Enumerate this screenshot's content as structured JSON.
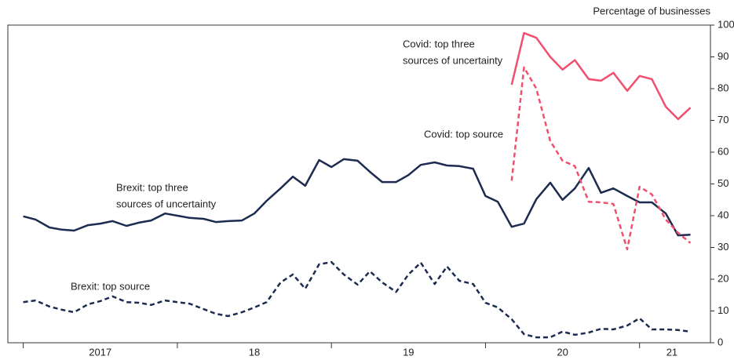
{
  "chart_data": {
    "type": "line",
    "y_axis_title": "Percentage of businesses",
    "annotations": [
      {
        "lines": [
          "Covid: top three",
          "sources of uncertainty"
        ]
      },
      {
        "lines": [
          "Covid: top source"
        ]
      },
      {
        "lines": [
          "Brexit: top three",
          "sources of uncertainty"
        ]
      },
      {
        "lines": [
          "Brexit: top source"
        ]
      }
    ],
    "x": [
      2017,
      2017.08,
      2017.17,
      2017.25,
      2017.33,
      2017.42,
      2017.5,
      2017.58,
      2017.67,
      2017.75,
      2017.83,
      2017.92,
      2018,
      2018.08,
      2018.17,
      2018.25,
      2018.33,
      2018.42,
      2018.5,
      2018.58,
      2018.67,
      2018.75,
      2018.83,
      2018.92,
      2019,
      2019.08,
      2019.17,
      2019.25,
      2019.33,
      2019.42,
      2019.5,
      2019.58,
      2019.67,
      2019.75,
      2019.83,
      2019.92,
      2020,
      2020.08,
      2020.17,
      2020.25,
      2020.33,
      2020.42,
      2020.5,
      2020.58,
      2020.67,
      2020.75,
      2020.83,
      2020.92,
      2021,
      2021.08,
      2021.17,
      2021.25,
      2021.33
    ],
    "series": [
      {
        "name": "Brexit: top three sources of uncertainty",
        "color": "#1c2b4f",
        "dashed": false,
        "values": [
          39.8,
          38.8,
          36.3,
          35.6,
          35.3,
          37,
          37.5,
          38.3,
          36.8,
          37.8,
          38.5,
          40.7,
          40,
          39.3,
          39,
          38,
          38.3,
          38.5,
          40.7,
          44.7,
          48.6,
          52.3,
          49.4,
          57.5,
          55.3,
          57.8,
          57.3,
          53.8,
          50.6,
          50.6,
          52.8,
          56,
          56.8,
          55.8,
          55.6,
          54.8,
          46.2,
          44.4,
          36.5,
          37.5,
          45.2,
          50.4,
          45,
          48.6,
          55,
          47.2,
          48.6,
          46.2,
          44.2,
          44.2,
          40.7,
          33.8,
          34
        ]
      },
      {
        "name": "Brexit: top source",
        "color": "#1c2b4f",
        "dashed": true,
        "values": [
          12.8,
          13.3,
          11.4,
          10.4,
          9.6,
          12.1,
          13.1,
          14.6,
          12.8,
          12.6,
          11.9,
          13.3,
          12.8,
          12.3,
          10.6,
          9.1,
          8.4,
          9.6,
          11.1,
          12.8,
          19,
          21.5,
          17,
          24.7,
          25.4,
          21.5,
          18.3,
          22.5,
          19,
          16,
          21.5,
          25.2,
          18.5,
          24,
          19.5,
          18.5,
          12.6,
          11.1,
          7.4,
          2.7,
          1.7,
          1.7,
          3.5,
          2.5,
          3.2,
          4.4,
          4.2,
          5.4,
          7.7,
          4.2,
          4.2,
          4,
          3.5
        ]
      },
      {
        "name": "Covid: top three sources of uncertainty",
        "color": "#f0506e",
        "dashed": false,
        "values": [
          null,
          null,
          null,
          null,
          null,
          null,
          null,
          null,
          null,
          null,
          null,
          null,
          null,
          null,
          null,
          null,
          null,
          null,
          null,
          null,
          null,
          null,
          null,
          null,
          null,
          null,
          null,
          null,
          null,
          null,
          null,
          null,
          null,
          null,
          null,
          null,
          null,
          null,
          81.2,
          97.5,
          96,
          90,
          86,
          89,
          83,
          82.5,
          85,
          79.3,
          84,
          83,
          74.3,
          70.4,
          74
        ]
      },
      {
        "name": "Covid: top source",
        "color": "#f0506e",
        "dashed": true,
        "values": [
          null,
          null,
          null,
          null,
          null,
          null,
          null,
          null,
          null,
          null,
          null,
          null,
          null,
          null,
          null,
          null,
          null,
          null,
          null,
          null,
          null,
          null,
          null,
          null,
          null,
          null,
          null,
          null,
          null,
          null,
          null,
          null,
          null,
          null,
          null,
          null,
          null,
          null,
          51,
          86.7,
          80,
          63.5,
          57.3,
          55.6,
          44.4,
          44.2,
          43.7,
          29.4,
          49.1,
          46.7,
          38.8,
          34.6,
          31.4
        ]
      }
    ],
    "xlim": [
      2016.9,
      2021.46
    ],
    "xticks": [
      2017,
      2018,
      2019,
      2020,
      2021
    ],
    "xlabels": [
      {
        "value": 2017.5,
        "label": "2017"
      },
      {
        "value": 2018.5,
        "label": "18"
      },
      {
        "value": 2019.5,
        "label": "19"
      },
      {
        "value": 2020.5,
        "label": "20"
      },
      {
        "value": 2021.21,
        "label": "21"
      }
    ],
    "ylim": [
      0,
      100
    ],
    "yticks": [
      0,
      10,
      20,
      30,
      40,
      50,
      60,
      70,
      80,
      90,
      100
    ],
    "y_axis_side": "right",
    "grid": false
  }
}
